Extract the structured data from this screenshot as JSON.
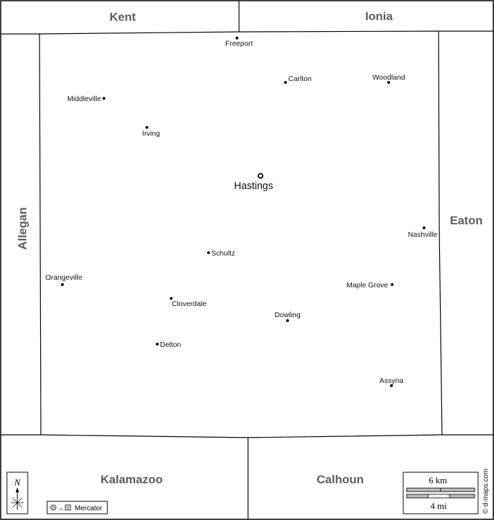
{
  "counties": {
    "kent": "Kent",
    "ionia": "Ionia",
    "allegan": "Allegan",
    "eaton": "Eaton",
    "kalamazoo": "Kalamazoo",
    "calhoun": "Calhoun"
  },
  "towns": {
    "freeport": "Freeport",
    "carlton": "Carlton",
    "woodland": "Woodland",
    "middleville": "Middleville",
    "irving": "Irving",
    "nashville": "Nashville",
    "schultz": "Schultz",
    "orangeville": "Orangeville",
    "maple_grove": "Maple Grove",
    "cloverdale": "Cloverdale",
    "dowling": "Dowling",
    "delton": "Delton",
    "assyria": "Assyria"
  },
  "county_seat": "Hastings",
  "compass_label": "N",
  "projection_label": "Mercator",
  "scale": {
    "km_label": "6 km",
    "mi_label": "4 mi"
  },
  "credit": "© d-maps.com"
}
